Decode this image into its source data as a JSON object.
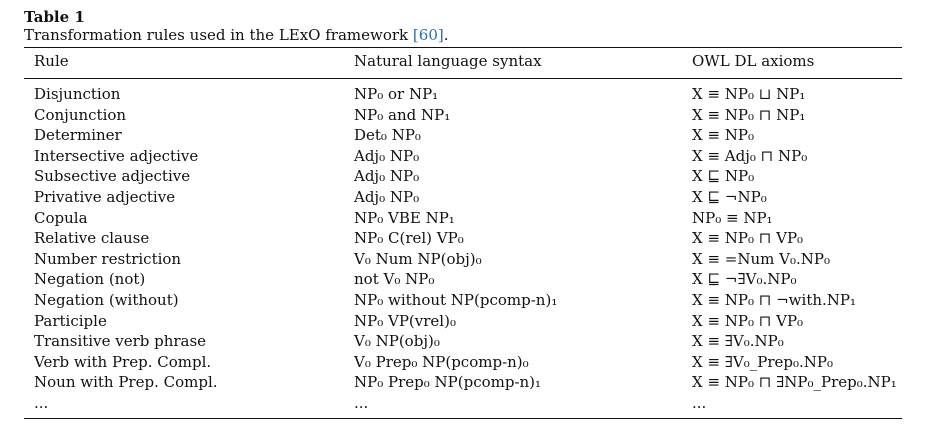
{
  "table": {
    "label": "Table 1",
    "caption_before": "Transformation rules used in the LExO framework ",
    "caption_ref": "[60]",
    "caption_after": ".",
    "headers": [
      "Rule",
      "Natural language syntax",
      "OWL DL axioms"
    ],
    "rows": [
      [
        "Disjunction",
        "NP₀ or NP₁",
        "X ≡ NP₀ ⊔ NP₁"
      ],
      [
        "Conjunction",
        "NP₀ and NP₁",
        "X ≡ NP₀ ⊓ NP₁"
      ],
      [
        "Determiner",
        "Det₀ NP₀",
        "X ≡ NP₀"
      ],
      [
        "Intersective adjective",
        "Adj₀ NP₀",
        "X ≡ Adj₀ ⊓ NP₀"
      ],
      [
        "Subsective adjective",
        "Adj₀ NP₀",
        "X ⊑ NP₀"
      ],
      [
        "Privative adjective",
        "Adj₀ NP₀",
        "X ⊑ ¬NP₀"
      ],
      [
        "Copula",
        "NP₀ VBE NP₁",
        "NP₀ ≡ NP₁"
      ],
      [
        "Relative clause",
        "NP₀ C(rel) VP₀",
        "X ≡ NP₀ ⊓ VP₀"
      ],
      [
        "Number restriction",
        "V₀ Num NP(obj)₀",
        "X ≡ =Num V₀.NP₀"
      ],
      [
        "Negation (not)",
        "not V₀ NP₀",
        "X ⊑ ¬∃V₀.NP₀"
      ],
      [
        "Negation (without)",
        "NP₀ without NP(pcomp-n)₁",
        "X ≡ NP₀ ⊓ ¬with.NP₁"
      ],
      [
        "Participle",
        "NP₀ VP(vrel)₀",
        "X ≡ NP₀ ⊓ VP₀"
      ],
      [
        "Transitive verb phrase",
        "V₀ NP(obj)₀",
        "X ≡ ∃V₀.NP₀"
      ],
      [
        "Verb with Prep. Compl.",
        "V₀ Prep₀ NP(pcomp-n)₀",
        "X ≡ ∃V₀_Prep₀.NP₀"
      ],
      [
        "Noun with Prep. Compl.",
        "NP₀ Prep₀ NP(pcomp-n)₁",
        "X ≡ NP₀ ⊓ ∃NP₀_Prep₀.NP₁"
      ],
      [
        "...",
        "...",
        "..."
      ]
    ]
  },
  "colors": {
    "text": "#111111",
    "link": "#2a6fb0"
  }
}
